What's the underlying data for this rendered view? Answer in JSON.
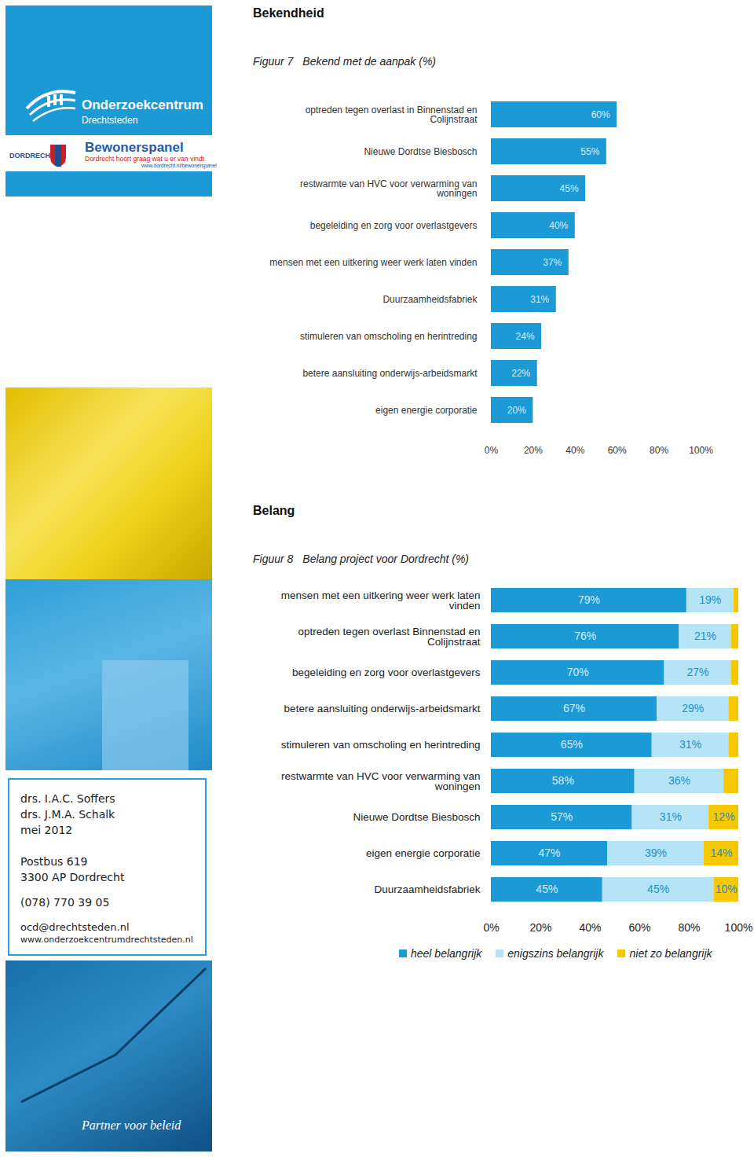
{
  "page": {
    "logo": {
      "name": "Onderzoekcentrum",
      "subname": "Drechtsteden",
      "city": "DORDRECHT",
      "panel": "Bewonerspanel",
      "panel_slogan": "Dordrecht hoort graag wat u er van vindt",
      "panel_url": "www.dordrecht.nl/bewonerspanel"
    },
    "authors": [
      "drs. I.A.C. Soffers",
      "drs. J.M.A. Schalk",
      "mei 2012"
    ],
    "address": [
      "Postbus 619",
      "3300 AP Dordrecht"
    ],
    "phone": "(078) 770 39 05",
    "email": "ocd@drechtsteden.nl",
    "website": "www.onderzoekcentrumdrechtsteden.nl",
    "tagline": "Partner voor beleid"
  },
  "chart_data": [
    {
      "section": "Bekendheid",
      "figure": "Figuur 7",
      "title": "Bekend met de aanpak (%)",
      "type": "bar",
      "orientation": "horizontal",
      "categories": [
        "optreden tegen overlast in Binnenstad en Colijnstraat",
        "Nieuwe Dordtse Biesbosch",
        "restwarmte van HVC voor verwarming van woningen",
        "begeleiding en zorg voor overlastgevers",
        "mensen met een uitkering weer werk laten vinden",
        "Duurzaamheidsfabriek",
        "stimuleren van omscholing en herintreding",
        "betere aansluiting onderwijs-arbeidsmarkt",
        "eigen energie corporatie"
      ],
      "values": [
        60,
        55,
        45,
        40,
        37,
        31,
        24,
        22,
        20
      ],
      "value_labels": [
        "60%",
        "55%",
        "45%",
        "40%",
        "37%",
        "31%",
        "24%",
        "22%",
        "20%"
      ],
      "data_labels": true,
      "color": "#1b9ad6",
      "xlim": [
        0,
        100
      ],
      "xticks": [
        {
          "value": 0,
          "label": "0%"
        },
        {
          "value": 20,
          "label": "20%"
        },
        {
          "value": 40,
          "label": "40%"
        },
        {
          "value": 60,
          "label": "60%"
        },
        {
          "value": 80,
          "label": "80%"
        },
        {
          "value": 100,
          "label": "100%"
        }
      ],
      "grid": false
    },
    {
      "section": "Belang",
      "figure": "Figuur 8",
      "title": "Belang project voor Dordrecht (%)",
      "type": "bar",
      "orientation": "horizontal",
      "stacked": true,
      "categories": [
        "mensen met een uitkering weer werk laten vinden",
        "optreden tegen overlast Binnenstad en Colijnstraat",
        "begeleiding en zorg voor overlastgevers",
        "betere aansluiting onderwijs-arbeidsmarkt",
        "stimuleren van omscholing en herintreding",
        "restwarmte van HVC voor verwarming van woningen",
        "Nieuwe Dordtse Biesbosch",
        "eigen energie corporatie",
        "Duurzaamheidsfabriek"
      ],
      "series": [
        {
          "name": "heel belangrijk",
          "color": "#1b9ad6",
          "values": [
            79,
            76,
            70,
            67,
            65,
            58,
            57,
            47,
            45
          ],
          "value_labels": [
            "79%",
            "76%",
            "70%",
            "67%",
            "65%",
            "58%",
            "57%",
            "47%",
            "45%"
          ]
        },
        {
          "name": "enigszins belangrijk",
          "color": "#b5e4f6",
          "values": [
            19,
            21,
            27,
            29,
            31,
            36,
            31,
            39,
            45
          ],
          "value_labels": [
            "19%",
            "21%",
            "27%",
            "29%",
            "31%",
            "36%",
            "31%",
            "39%",
            "45%"
          ]
        },
        {
          "name": "niet zo belangrijk",
          "color": "#f5c800",
          "values": [
            2,
            3,
            3,
            4,
            4,
            6,
            12,
            14,
            10
          ],
          "value_labels": [
            null,
            null,
            null,
            null,
            null,
            null,
            "12%",
            "14%",
            "10%"
          ]
        }
      ],
      "data_labels": true,
      "xlim": [
        0,
        100
      ],
      "xticks": [
        {
          "value": 0,
          "label": "0%"
        },
        {
          "value": 20,
          "label": "20%"
        },
        {
          "value": 40,
          "label": "40%"
        },
        {
          "value": 60,
          "label": "60%"
        },
        {
          "value": 80,
          "label": "80%"
        },
        {
          "value": 100,
          "label": "100%"
        }
      ],
      "legend": "bottom",
      "grid": false
    }
  ]
}
